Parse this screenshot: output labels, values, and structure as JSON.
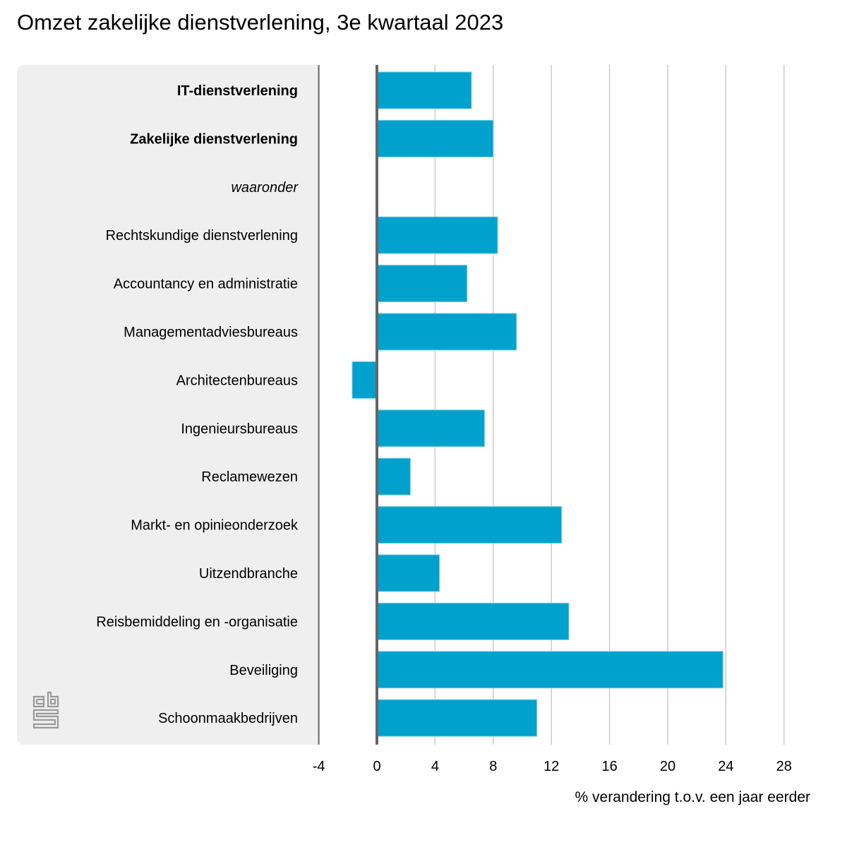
{
  "chart_data": {
    "type": "bar",
    "orientation": "horizontal",
    "title": "Omzet zakelijke dienstverlening, 3e kwartaal 2023",
    "xlabel": "% verandering t.o.v. een jaar eerder",
    "ylabel": "",
    "xlim": [
      -4,
      30
    ],
    "xticks": [
      -4,
      0,
      4,
      8,
      12,
      16,
      20,
      24,
      28
    ],
    "grid": true,
    "bar_color": "#00a1cd",
    "categories": [
      {
        "label": "IT-dienstverlening",
        "style": "bold",
        "value": 6.5
      },
      {
        "label": "Zakelijke dienstverlening",
        "style": "bold",
        "value": 8.0
      },
      {
        "label": "waaronder",
        "style": "italic",
        "value": null
      },
      {
        "label": "Rechtskundige dienstverlening",
        "style": "normal",
        "value": 8.3
      },
      {
        "label": "Accountancy en administratie",
        "style": "normal",
        "value": 6.2
      },
      {
        "label": "Managementadviesbureaus",
        "style": "normal",
        "value": 9.6
      },
      {
        "label": "Architectenbureaus",
        "style": "normal",
        "value": -1.7
      },
      {
        "label": "Ingenieursbureaus",
        "style": "normal",
        "value": 7.4
      },
      {
        "label": "Reclamewezen",
        "style": "normal",
        "value": 2.3
      },
      {
        "label": "Markt- en opinieonderzoek",
        "style": "normal",
        "value": 12.7
      },
      {
        "label": "Uitzendbranche",
        "style": "normal",
        "value": 4.3
      },
      {
        "label": "Reisbemiddeling en -organisatie",
        "style": "normal",
        "value": 13.2
      },
      {
        "label": "Beveiliging",
        "style": "normal",
        "value": 23.8
      },
      {
        "label": "Schoonmaakbedrijven",
        "style": "normal",
        "value": 11.0
      }
    ]
  },
  "logo": {
    "icon": "cbs-logo-icon"
  }
}
